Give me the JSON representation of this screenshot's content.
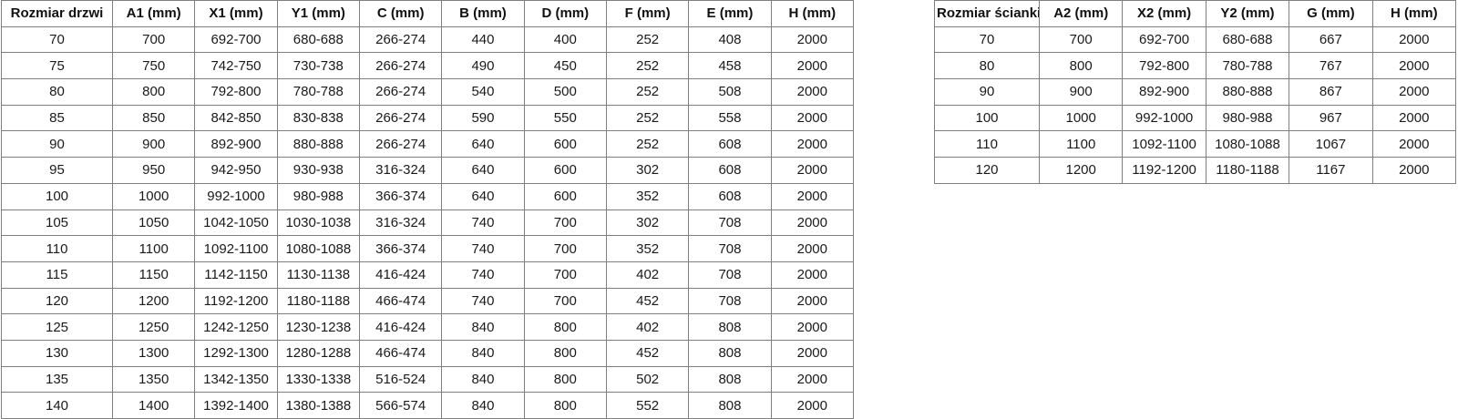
{
  "door_table": {
    "name": "Rozmiar drzwi",
    "headers": [
      "Rozmiar drzwi",
      "A1 (mm)",
      "X1 (mm)",
      "Y1 (mm)",
      "C (mm)",
      "B (mm)",
      "D (mm)",
      "F (mm)",
      "E (mm)",
      "H (mm)"
    ],
    "rows": [
      [
        "70",
        "700",
        "692-700",
        "680-688",
        "266-274",
        "440",
        "400",
        "252",
        "408",
        "2000"
      ],
      [
        "75",
        "750",
        "742-750",
        "730-738",
        "266-274",
        "490",
        "450",
        "252",
        "458",
        "2000"
      ],
      [
        "80",
        "800",
        "792-800",
        "780-788",
        "266-274",
        "540",
        "500",
        "252",
        "508",
        "2000"
      ],
      [
        "85",
        "850",
        "842-850",
        "830-838",
        "266-274",
        "590",
        "550",
        "252",
        "558",
        "2000"
      ],
      [
        "90",
        "900",
        "892-900",
        "880-888",
        "266-274",
        "640",
        "600",
        "252",
        "608",
        "2000"
      ],
      [
        "95",
        "950",
        "942-950",
        "930-938",
        "316-324",
        "640",
        "600",
        "302",
        "608",
        "2000"
      ],
      [
        "100",
        "1000",
        "992-1000",
        "980-988",
        "366-374",
        "640",
        "600",
        "352",
        "608",
        "2000"
      ],
      [
        "105",
        "1050",
        "1042-1050",
        "1030-1038",
        "316-324",
        "740",
        "700",
        "302",
        "708",
        "2000"
      ],
      [
        "110",
        "1100",
        "1092-1100",
        "1080-1088",
        "366-374",
        "740",
        "700",
        "352",
        "708",
        "2000"
      ],
      [
        "115",
        "1150",
        "1142-1150",
        "1130-1138",
        "416-424",
        "740",
        "700",
        "402",
        "708",
        "2000"
      ],
      [
        "120",
        "1200",
        "1192-1200",
        "1180-1188",
        "466-474",
        "740",
        "700",
        "452",
        "708",
        "2000"
      ],
      [
        "125",
        "1250",
        "1242-1250",
        "1230-1238",
        "416-424",
        "840",
        "800",
        "402",
        "808",
        "2000"
      ],
      [
        "130",
        "1300",
        "1292-1300",
        "1280-1288",
        "466-474",
        "840",
        "800",
        "452",
        "808",
        "2000"
      ],
      [
        "135",
        "1350",
        "1342-1350",
        "1330-1338",
        "516-524",
        "840",
        "800",
        "502",
        "808",
        "2000"
      ],
      [
        "140",
        "1400",
        "1392-1400",
        "1380-1388",
        "566-574",
        "840",
        "800",
        "552",
        "808",
        "2000"
      ]
    ]
  },
  "wall_table": {
    "name": "Rozmiar ścianki",
    "headers": [
      "Rozmiar ścianki",
      "A2 (mm)",
      "X2 (mm)",
      "Y2 (mm)",
      "G (mm)",
      "H (mm)"
    ],
    "rows": [
      [
        "70",
        "700",
        "692-700",
        "680-688",
        "667",
        "2000"
      ],
      [
        "80",
        "800",
        "792-800",
        "780-788",
        "767",
        "2000"
      ],
      [
        "90",
        "900",
        "892-900",
        "880-888",
        "867",
        "2000"
      ],
      [
        "100",
        "1000",
        "992-1000",
        "980-988",
        "967",
        "2000"
      ],
      [
        "110",
        "1100",
        "1092-1100",
        "1080-1088",
        "1067",
        "2000"
      ],
      [
        "120",
        "1200",
        "1192-1200",
        "1180-1188",
        "1167",
        "2000"
      ]
    ]
  },
  "colors": {
    "border": "#7f7f7f",
    "text": "#1a1a1a",
    "background": "#ffffff"
  }
}
